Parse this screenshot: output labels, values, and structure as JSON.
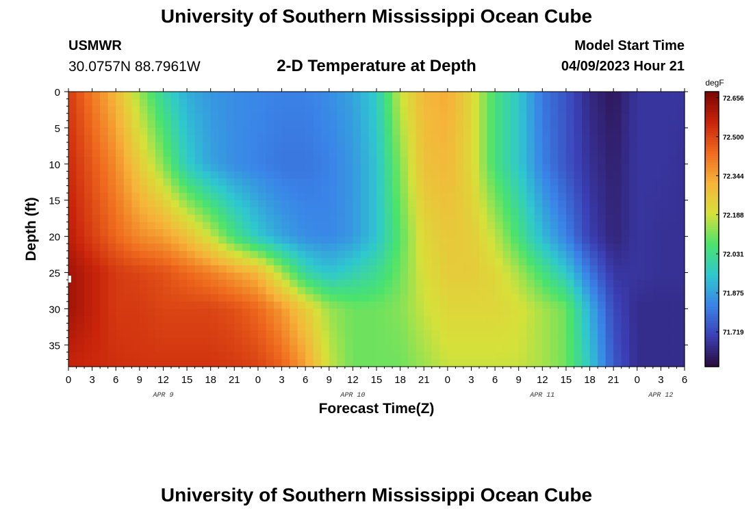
{
  "header": {
    "title": "University of Southern Mississippi Ocean Cube",
    "station_id": "USMWR",
    "station_coords": "30.0757N  88.7961W",
    "plot_title": "2-D Temperature at Depth",
    "model_start_label": "Model Start Time",
    "model_start_value": "04/09/2023 Hour 21"
  },
  "footer": {
    "title": "University of Southern Mississippi Ocean Cube"
  },
  "chart_data": {
    "type": "heatmap",
    "xlabel": "Forecast Time(Z)",
    "ylabel": "Depth (ft)",
    "x_unit": "hours (Z)",
    "xlim": [
      0,
      78
    ],
    "ylim": [
      38,
      0
    ],
    "x_ticks": [
      0,
      3,
      6,
      9,
      12,
      15,
      18,
      21,
      24,
      27,
      30,
      33,
      36,
      39,
      42,
      45,
      48,
      51,
      54,
      57,
      60,
      63,
      66,
      69,
      72,
      75,
      78
    ],
    "x_tick_labels": [
      "0",
      "3",
      "6",
      "9",
      "12",
      "15",
      "18",
      "21",
      "0",
      "3",
      "6",
      "9",
      "12",
      "15",
      "18",
      "21",
      "0",
      "3",
      "6",
      "9",
      "12",
      "15",
      "18",
      "21",
      "0",
      "3",
      "6"
    ],
    "y_ticks": [
      0,
      5,
      10,
      15,
      20,
      25,
      30,
      35
    ],
    "y_tick_labels": [
      "0",
      "5",
      "10",
      "15",
      "20",
      "25",
      "30",
      "35"
    ],
    "date_labels": [
      {
        "text": "APR 9",
        "x": 12
      },
      {
        "text": "APR 10",
        "x": 36
      },
      {
        "text": "APR 11",
        "x": 60
      },
      {
        "text": "APR 12",
        "x": 75
      }
    ],
    "colorbar": {
      "unit": "degF",
      "min": 71.58,
      "max": 72.68,
      "ticks": [
        72.656,
        72.5,
        72.344,
        72.188,
        72.031,
        71.875,
        71.719
      ],
      "tick_labels": [
        "72.656",
        "72.500",
        "72.344",
        "72.188",
        "72.031",
        "71.875",
        "71.719"
      ]
    },
    "grid": false,
    "depth_profiles": {
      "depths": [
        0,
        10,
        20,
        25,
        30,
        38
      ],
      "times": [
        0,
        6,
        9,
        12,
        15,
        18,
        21,
        24,
        27,
        30,
        33,
        36,
        39,
        42,
        45,
        48,
        51,
        54,
        57,
        60,
        63,
        66,
        69,
        72,
        75,
        78
      ],
      "values": [
        [
          72.52,
          72.55,
          72.58,
          72.62,
          72.62,
          72.56
        ],
        [
          72.3,
          72.38,
          72.44,
          72.52,
          72.52,
          72.54
        ],
        [
          72.14,
          72.25,
          72.38,
          72.5,
          72.52,
          72.53
        ],
        [
          72.0,
          72.12,
          72.35,
          72.48,
          72.5,
          72.53
        ],
        [
          71.9,
          71.96,
          72.28,
          72.44,
          72.5,
          72.53
        ],
        [
          71.86,
          71.88,
          72.18,
          72.4,
          72.5,
          72.53
        ],
        [
          71.84,
          71.84,
          72.05,
          72.35,
          72.48,
          72.52
        ],
        [
          71.83,
          71.82,
          71.95,
          72.3,
          72.44,
          72.5
        ],
        [
          71.82,
          71.8,
          71.88,
          72.15,
          72.36,
          72.45
        ],
        [
          71.82,
          71.8,
          71.84,
          72.0,
          72.25,
          72.35
        ],
        [
          71.84,
          71.82,
          71.83,
          71.94,
          72.14,
          72.18
        ],
        [
          71.88,
          71.86,
          71.86,
          71.98,
          72.1,
          72.1
        ],
        [
          71.96,
          71.94,
          71.94,
          72.02,
          72.1,
          72.1
        ],
        [
          72.18,
          72.12,
          72.08,
          72.1,
          72.12,
          72.1
        ],
        [
          72.3,
          72.28,
          72.22,
          72.2,
          72.18,
          72.14
        ],
        [
          72.33,
          72.3,
          72.26,
          72.25,
          72.22,
          72.18
        ],
        [
          72.22,
          72.22,
          72.25,
          72.25,
          72.22,
          72.18
        ],
        [
          72.05,
          72.05,
          72.17,
          72.22,
          72.22,
          72.18
        ],
        [
          71.95,
          71.95,
          72.05,
          72.15,
          72.2,
          72.18
        ],
        [
          71.8,
          71.82,
          71.92,
          72.05,
          72.15,
          72.15
        ],
        [
          71.74,
          71.74,
          71.82,
          71.95,
          72.1,
          72.1
        ],
        [
          71.65,
          71.67,
          71.7,
          71.8,
          71.9,
          71.95
        ],
        [
          71.61,
          71.63,
          71.64,
          71.68,
          71.72,
          71.75
        ],
        [
          71.68,
          71.68,
          71.68,
          71.68,
          71.66,
          71.66
        ],
        [
          71.68,
          71.68,
          71.67,
          71.67,
          71.66,
          71.66
        ],
        [
          71.68,
          71.67,
          71.67,
          71.67,
          71.66,
          71.66
        ]
      ]
    },
    "colors": {
      "scale": [
        "#2a0a3c",
        "#3b3fb5",
        "#3a84e8",
        "#2fc8cf",
        "#4be36c",
        "#d6e13a",
        "#f6b43a",
        "#ef6a1e",
        "#c9240b",
        "#7a0403"
      ]
    }
  }
}
